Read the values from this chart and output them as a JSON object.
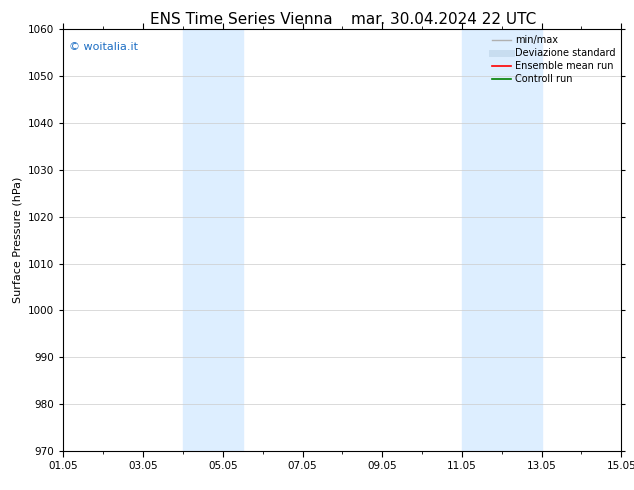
{
  "title": "ENS Time Series Vienna",
  "title2": "mar. 30.04.2024 22 UTC",
  "ylabel": "Surface Pressure (hPa)",
  "ylim": [
    970,
    1060
  ],
  "yticks": [
    970,
    980,
    990,
    1000,
    1010,
    1020,
    1030,
    1040,
    1050,
    1060
  ],
  "xlim_start": 0,
  "xlim_end": 14,
  "xtick_labels": [
    "01.05",
    "03.05",
    "05.05",
    "07.05",
    "09.05",
    "11.05",
    "13.05",
    "15.05"
  ],
  "xtick_positions": [
    0,
    2,
    4,
    6,
    8,
    10,
    12,
    14
  ],
  "shaded_regions": [
    {
      "x_start": 3.0,
      "x_end": 4.5,
      "color": "#ddeeff"
    },
    {
      "x_start": 10.0,
      "x_end": 12.0,
      "color": "#ddeeff"
    }
  ],
  "watermark_text": "© woitalia.it",
  "watermark_color": "#1e6fc4",
  "legend_items": [
    {
      "label": "min/max",
      "color": "#b0b0b0",
      "lw": 1.0
    },
    {
      "label": "Deviazione standard",
      "color": "#c8ddf0",
      "lw": 5
    },
    {
      "label": "Ensemble mean run",
      "color": "#ff0000",
      "lw": 1.2
    },
    {
      "label": "Controll run",
      "color": "#008000",
      "lw": 1.2
    }
  ],
  "bg_color": "#ffffff",
  "plot_bg_color": "#ffffff",
  "grid_color": "#cccccc",
  "title_fontsize": 11,
  "label_fontsize": 8,
  "tick_fontsize": 7.5,
  "legend_fontsize": 7,
  "watermark_fontsize": 8
}
